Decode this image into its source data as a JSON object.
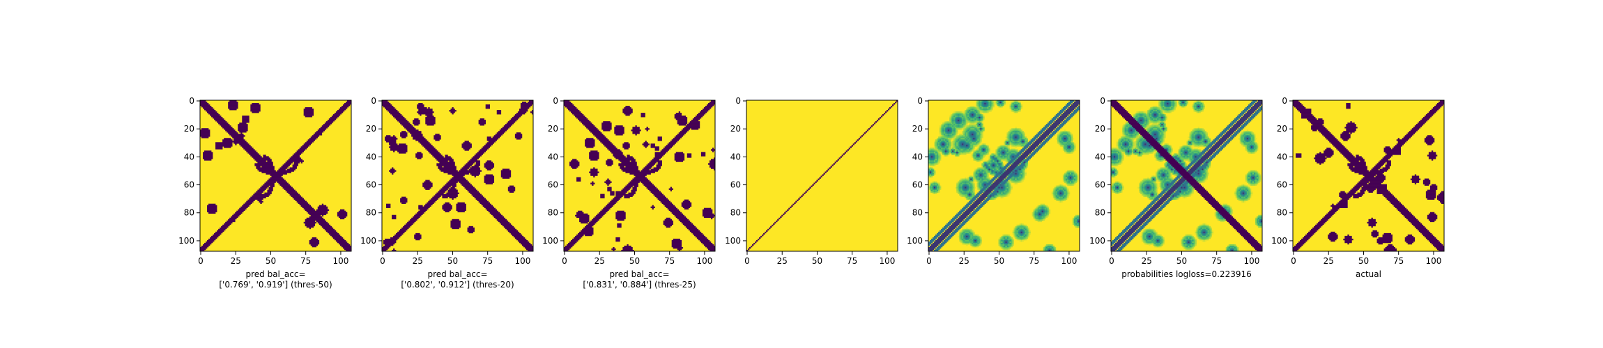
{
  "figure": {
    "colors": {
      "low": "#440154",
      "high": "#fde725",
      "mid_dark": "#31688e",
      "mid": "#21918c",
      "mid_light": "#5ec962",
      "axis": "#000000"
    }
  },
  "chart_data": [
    {
      "type": "heatmap",
      "panel": "pred-thres-50",
      "matrix_size": 108,
      "xlim": [
        0,
        107
      ],
      "ylim": [
        107,
        0
      ],
      "xticks": [
        0,
        25,
        50,
        75,
        100
      ],
      "yticks": [
        0,
        20,
        40,
        60,
        80,
        100
      ],
      "xlabel_lines": [
        "pred bal_acc=",
        "['0.769', '0.919'] (thres-50)"
      ],
      "value_range": [
        0,
        1
      ],
      "binary": true,
      "pattern": {
        "diag_width": 3,
        "anti_width": 2,
        "density": 0.55,
        "seed": 11
      }
    },
    {
      "type": "heatmap",
      "panel": "pred-thres-20",
      "matrix_size": 108,
      "xlim": [
        0,
        107
      ],
      "ylim": [
        107,
        0
      ],
      "xticks": [
        0,
        25,
        50,
        75,
        100
      ],
      "yticks": [
        0,
        20,
        40,
        60,
        80,
        100
      ],
      "xlabel_lines": [
        "pred bal_acc=",
        "['0.802', '0.912'] (thres-20)"
      ],
      "value_range": [
        0,
        1
      ],
      "binary": true,
      "pattern": {
        "diag_width": 3,
        "anti_width": 2,
        "density": 0.85,
        "seed": 23
      }
    },
    {
      "type": "heatmap",
      "panel": "pred-thres-25",
      "matrix_size": 108,
      "xlim": [
        0,
        107
      ],
      "ylim": [
        107,
        0
      ],
      "xticks": [
        0,
        25,
        50,
        75,
        100
      ],
      "yticks": [
        0,
        20,
        40,
        60,
        80,
        100
      ],
      "xlabel_lines": [
        "pred bal_acc=",
        "['0.831', '0.884'] (thres-25)"
      ],
      "value_range": [
        0,
        1
      ],
      "binary": true,
      "pattern": {
        "diag_width": 3,
        "anti_width": 2,
        "density": 1.0,
        "seed": 37
      }
    },
    {
      "type": "heatmap",
      "panel": "anti-diagonal-only",
      "matrix_size": 108,
      "xlim": [
        0,
        107
      ],
      "ylim": [
        107,
        0
      ],
      "xticks": [
        0,
        25,
        50,
        75,
        100
      ],
      "yticks": [
        0,
        20,
        40,
        60,
        80,
        100
      ],
      "xlabel_lines": [],
      "value_range": [
        0,
        1
      ],
      "binary": true,
      "pattern": {
        "diag_width": 0,
        "anti_width": 0.5,
        "density": 0,
        "seed": 0
      }
    },
    {
      "type": "heatmap",
      "panel": "probabilities-map",
      "matrix_size": 108,
      "xlim": [
        0,
        107
      ],
      "ylim": [
        107,
        0
      ],
      "xticks": [
        0,
        25,
        50,
        75,
        100
      ],
      "yticks": [
        0,
        20,
        40,
        60,
        80,
        100
      ],
      "xlabel_lines": [],
      "value_range": [
        0,
        1
      ],
      "binary": false,
      "pattern": {
        "diag_width": 0,
        "anti_width": 2,
        "density": 0.9,
        "seed": 51
      }
    },
    {
      "type": "heatmap",
      "panel": "probabilities-logloss",
      "matrix_size": 108,
      "xlim": [
        0,
        107
      ],
      "ylim": [
        107,
        0
      ],
      "xticks": [
        0,
        25,
        50,
        75,
        100
      ],
      "yticks": [
        0,
        20,
        40,
        60,
        80,
        100
      ],
      "xlabel_lines": [
        "probabilities logloss=0.223916"
      ],
      "value_range": [
        0,
        1
      ],
      "binary": false,
      "pattern": {
        "diag_width": 3,
        "anti_width": 2,
        "density": 0.9,
        "seed": 51
      }
    },
    {
      "type": "heatmap",
      "panel": "actual",
      "matrix_size": 108,
      "xlim": [
        0,
        107
      ],
      "ylim": [
        107,
        0
      ],
      "xticks": [
        0,
        25,
        50,
        75,
        100
      ],
      "yticks": [
        0,
        20,
        40,
        60,
        80,
        100
      ],
      "xlabel_lines": [
        "actual"
      ],
      "value_range": [
        0,
        1
      ],
      "binary": true,
      "pattern": {
        "diag_width": 3,
        "anti_width": 2,
        "density": 0.7,
        "seed": 73
      }
    }
  ]
}
